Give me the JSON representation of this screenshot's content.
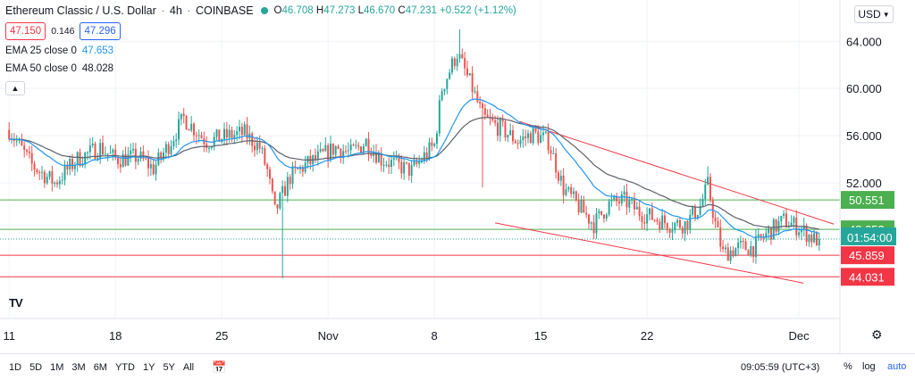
{
  "header": {
    "symbol": "Ethereum Classic / U.S. Dollar",
    "interval": "4h",
    "exchange": "COINBASE",
    "ohlc": {
      "o_label": "O",
      "o": "46.708",
      "h_label": "H",
      "h": "47.273",
      "l_label": "L",
      "l": "46.670",
      "c_label": "C",
      "c": "47.231",
      "change": "+0.522 (+1.12%)"
    },
    "sell_price": "47.150",
    "spread": "0.146",
    "buy_price": "47.296",
    "ema25_label": "EMA 25 close 0",
    "ema25_value": "47.653",
    "ema50_label": "EMA 50 close 0",
    "ema50_value": "48.028"
  },
  "currency_button": "USD",
  "bottom_bar": {
    "timeframes": [
      "1D",
      "5D",
      "1M",
      "3M",
      "6M",
      "YTD",
      "1Y",
      "5Y",
      "All"
    ],
    "time": "09:05:59 (UTC+3)",
    "percent": "%",
    "log": "log",
    "auto": "auto"
  },
  "colors": {
    "up": "#26a69a",
    "down": "#ef5350",
    "ema25": "#2196f3",
    "ema50": "#5d606b",
    "green_line": "#4caf50",
    "red_line": "#f23645",
    "channel": "#f23645"
  },
  "chart_data": {
    "type": "candlestick",
    "title": "Ethereum Classic / U.S. Dollar · 4h · COINBASE",
    "ylim": [
      40.5,
      67.5
    ],
    "y_ticks": [
      64.0,
      60.0,
      56.0,
      52.0
    ],
    "y_tick_labels": [
      "64.000",
      "60.000",
      "56.000",
      "52.000"
    ],
    "x_ticks": [
      {
        "label": "11",
        "day": 0
      },
      {
        "label": "18",
        "day": 7
      },
      {
        "label": "25",
        "day": 14
      },
      {
        "label": "Nov",
        "day": 21
      },
      {
        "label": "8",
        "day": 28
      },
      {
        "label": "15",
        "day": 35
      },
      {
        "label": "22",
        "day": 42
      },
      {
        "label": "Dec",
        "day": 52
      }
    ],
    "xlim_days": [
      -0.6,
      54.7
    ],
    "horizontal_lines": [
      {
        "value": 50.551,
        "label": "50.551",
        "color": "#4caf50"
      },
      {
        "value": 48.053,
        "label": "48.053",
        "color": "#4caf50"
      },
      {
        "value": 45.859,
        "label": "45.859",
        "color": "#f23645"
      },
      {
        "value": 44.031,
        "label": "44.031",
        "color": "#f23645"
      }
    ],
    "countdown_label": "01:54:00",
    "last_price": 47.231,
    "channel_lines": [
      {
        "from": [
          33.6,
          57.2
        ],
        "to": [
          54.3,
          48.5
        ]
      },
      {
        "from": [
          32.0,
          48.6
        ],
        "to": [
          52.3,
          43.5
        ]
      }
    ],
    "anchors": [
      [
        0,
        56.5
      ],
      [
        1.5,
        53.5
      ],
      [
        3,
        52.0
      ],
      [
        4.5,
        54.0
      ],
      [
        6,
        55.0
      ],
      [
        7,
        54.0
      ],
      [
        8.5,
        54.2
      ],
      [
        9.5,
        53.2
      ],
      [
        10.5,
        55.2
      ],
      [
        11.5,
        57.5
      ],
      [
        13,
        55.5
      ],
      [
        14.5,
        56.0
      ],
      [
        15.5,
        56.2
      ],
      [
        16.5,
        55.0
      ],
      [
        17,
        53.0
      ],
      [
        17.5,
        49.5
      ],
      [
        18.5,
        52.5
      ],
      [
        19.5,
        53.5
      ],
      [
        20.5,
        54.2
      ],
      [
        21.5,
        55.0
      ],
      [
        22.5,
        54.5
      ],
      [
        23.5,
        55.5
      ],
      [
        24.5,
        54.0
      ],
      [
        25.5,
        53.5
      ],
      [
        26.5,
        53.0
      ],
      [
        27.5,
        54.5
      ],
      [
        28,
        55.2
      ],
      [
        28.5,
        60.0
      ],
      [
        29.5,
        63.0
      ],
      [
        30.5,
        60.0
      ],
      [
        31.2,
        57.5
      ],
      [
        32.5,
        56.5
      ],
      [
        33.5,
        55.5
      ],
      [
        34.5,
        56.2
      ],
      [
        35.5,
        55.5
      ],
      [
        36.5,
        51.5
      ],
      [
        37.5,
        50.0
      ],
      [
        38.5,
        48.5
      ],
      [
        39.5,
        50.2
      ],
      [
        40.5,
        50.5
      ],
      [
        41.5,
        49.5
      ],
      [
        42.5,
        49.0
      ],
      [
        43.5,
        48.5
      ],
      [
        44.5,
        48.5
      ],
      [
        45.5,
        50.0
      ],
      [
        46,
        51.8
      ],
      [
        46.5,
        48.5
      ],
      [
        47,
        46.0
      ],
      [
        48,
        46.5
      ],
      [
        49,
        46.5
      ],
      [
        50,
        47.8
      ],
      [
        51,
        48.8
      ],
      [
        52,
        48.2
      ],
      [
        53,
        47.2
      ],
      [
        53.4,
        47.231
      ]
    ],
    "wick_spikes": [
      {
        "day": 18.0,
        "low": 43.9
      },
      {
        "day": 29.6,
        "high": 65.0
      },
      {
        "day": 31.1,
        "low": 51.6
      },
      {
        "day": 46.0,
        "high": 53.4
      }
    ]
  }
}
